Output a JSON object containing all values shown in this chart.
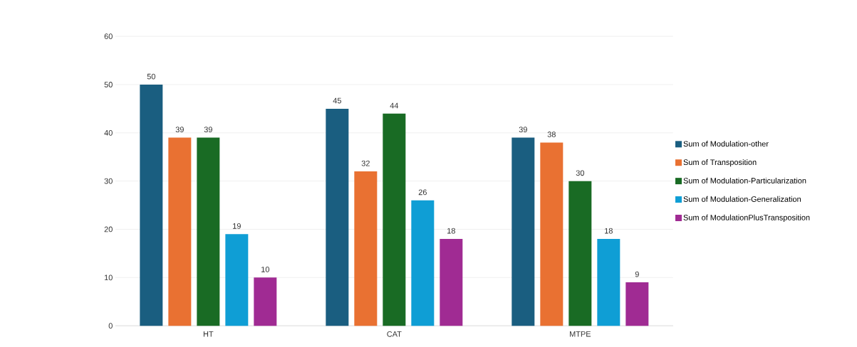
{
  "chart_data": {
    "type": "bar",
    "categories": [
      "HT",
      "CAT",
      "MTPE"
    ],
    "series": [
      {
        "name": "Sum of Modulation-other",
        "color": "#1a5e80",
        "values": [
          50,
          45,
          39
        ]
      },
      {
        "name": "Sum of Transposition",
        "color": "#e97132",
        "values": [
          39,
          32,
          38
        ]
      },
      {
        "name": "Sum of Modulation-Particularization",
        "color": "#196b24",
        "values": [
          39,
          44,
          30
        ]
      },
      {
        "name": "Sum of Modulation-Generalization",
        "color": "#0f9ed5",
        "values": [
          19,
          26,
          18
        ]
      },
      {
        "name": "Sum of ModulationPlusTransposition",
        "color": "#a02b93",
        "values": [
          10,
          18,
          9
        ]
      }
    ],
    "ylim": [
      0,
      60
    ],
    "yticks": [
      0,
      10,
      20,
      30,
      40,
      50,
      60
    ],
    "grid": "y",
    "legend": "right",
    "data_labels": true
  }
}
